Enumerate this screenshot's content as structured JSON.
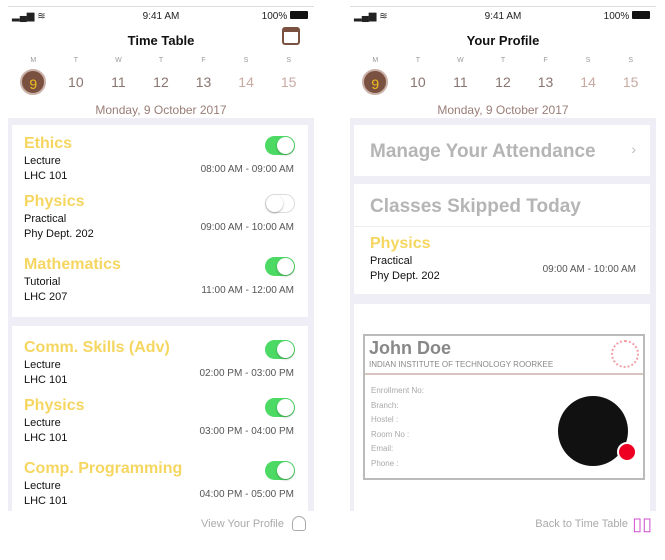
{
  "status": {
    "time": "9:41 AM",
    "battery": "100%"
  },
  "week": {
    "letters": [
      "M",
      "T",
      "W",
      "T",
      "F",
      "S",
      "S"
    ],
    "numbers": [
      "9",
      "10",
      "11",
      "12",
      "13",
      "14",
      "15"
    ],
    "selected": "9",
    "date": "Monday, 9 October 2017"
  },
  "left": {
    "title": "Time Table",
    "calendar_icon": "calendar-icon",
    "cards": [
      [
        {
          "subject": "Ethics",
          "type": "Lecture",
          "room": "LHC 101",
          "time": "08:00 AM - 09:00 AM",
          "on": true
        },
        {
          "subject": "Physics",
          "type": "Practical",
          "room": "Phy Dept. 202",
          "time": "09:00 AM - 10:00 AM",
          "on": false
        },
        {
          "subject": "Mathematics",
          "type": "Tutorial",
          "room": "LHC 207",
          "time": "11:00 AM - 12:00 AM",
          "on": true
        }
      ],
      [
        {
          "subject": "Comm. Skills (Adv)",
          "type": "Lecture",
          "room": "LHC 101",
          "time": "02:00 PM - 03:00 PM",
          "on": true
        },
        {
          "subject": "Physics",
          "type": "Lecture",
          "room": "LHC 101",
          "time": "03:00 PM - 04:00 PM",
          "on": true
        },
        {
          "subject": "Comp. Programming",
          "type": "Lecture",
          "room": "LHC 101",
          "time": "04:00 PM - 05:00 PM",
          "on": true
        }
      ]
    ],
    "footer": "View Your Profile"
  },
  "right": {
    "title": "Your Profile",
    "manage": "Manage Your Attendance",
    "skipped": "Classes Skipped Today",
    "skipped_item": {
      "subject": "Physics",
      "type": "Practical",
      "room": "Phy Dept. 202",
      "time": "09:00 AM - 10:00 AM"
    },
    "id": {
      "name": "John Doe",
      "institute": "INDIAN INSTITUTE OF TECHNOLOGY ROORKEE",
      "fields": [
        "Enrollment No:",
        "Branch:",
        "Hostel :",
        "Room No :",
        "Email:",
        "Phone :"
      ]
    },
    "footer": "Back to Time Table"
  },
  "colors": {
    "accent": "#f5d660",
    "selected_day": "#7a5040",
    "toggle": "#4cd964",
    "status_dot": "#ee0022"
  }
}
